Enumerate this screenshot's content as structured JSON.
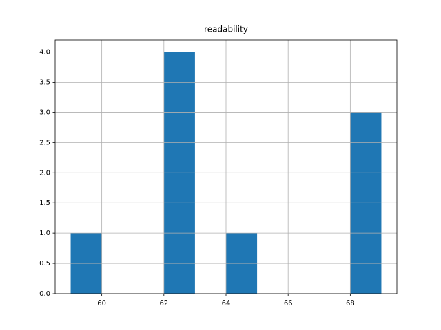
{
  "chart_data": {
    "type": "histogram",
    "title": "readability",
    "bins": [
      59,
      60,
      61,
      62,
      63,
      64,
      65,
      66,
      67,
      68,
      69
    ],
    "values": [
      1,
      0,
      0,
      4,
      0,
      1,
      0,
      0,
      0,
      3
    ],
    "color": "#1f77b4",
    "xlim": [
      58.5,
      69.5
    ],
    "xticks": [
      60,
      62,
      64,
      66,
      68
    ],
    "ylim": [
      0,
      4.2
    ],
    "yticks": [
      {
        "value": 0,
        "label": "0.0"
      },
      0.5,
      {
        "value": 1,
        "label": "1.0"
      },
      1.5,
      {
        "value": 2,
        "label": "2.0"
      },
      2.5,
      {
        "value": 3,
        "label": "3.0"
      },
      3.5,
      {
        "value": 4,
        "label": "4.0"
      }
    ],
    "grid": true
  }
}
